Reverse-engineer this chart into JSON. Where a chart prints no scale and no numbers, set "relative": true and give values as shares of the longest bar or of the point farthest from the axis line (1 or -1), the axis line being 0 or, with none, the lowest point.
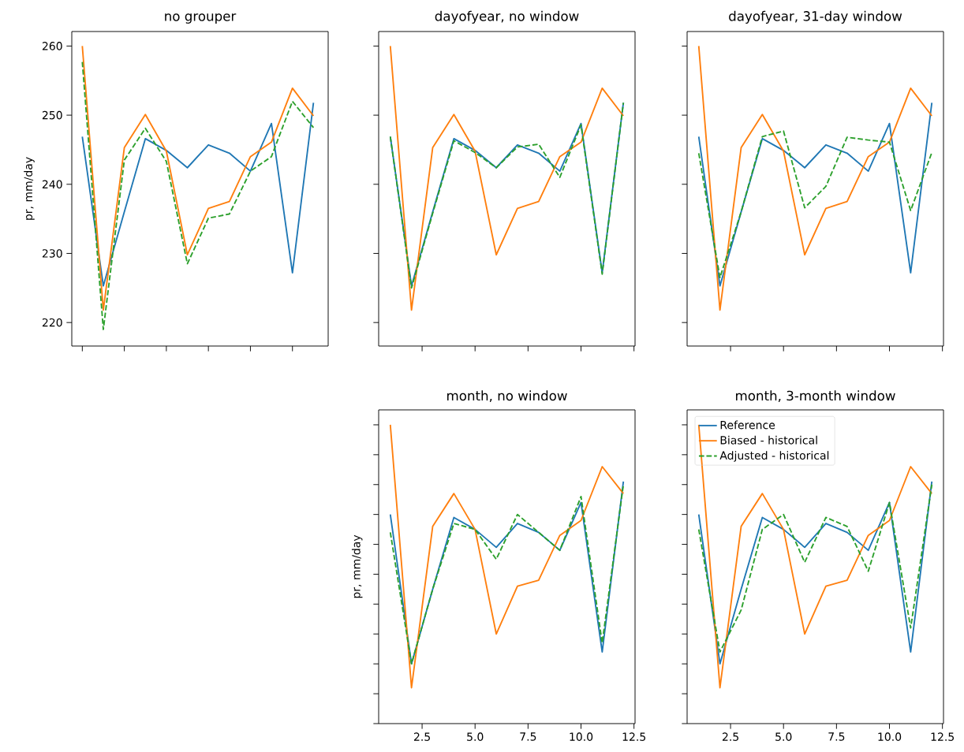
{
  "chart_data": [
    {
      "type": "line",
      "title": "no grouper",
      "ylabel": "pr, mm/day",
      "categories": [
        null,
        null,
        null,
        null,
        null,
        null,
        null,
        null,
        null,
        null,
        null,
        null
      ],
      "ylim": [
        216.6,
        262.1
      ],
      "yticks": [
        220,
        230,
        240,
        250,
        260
      ],
      "tick_labels": "y",
      "series": [
        {
          "color": "#1f77b4",
          "line_style": "solid",
          "values": [
            246.9,
            225.3,
            236.0,
            246.6,
            244.9,
            242.4,
            245.7,
            244.5,
            241.9,
            248.8,
            227.2,
            251.8
          ]
        },
        {
          "color": "#ff7f0e",
          "line_style": "solid",
          "values": [
            260.0,
            221.8,
            245.3,
            250.1,
            244.8,
            229.8,
            236.5,
            237.5,
            244.0,
            246.1,
            253.9,
            249.9
          ]
        },
        {
          "color": "#2ca02c",
          "line_style": "dashed",
          "values": [
            257.7,
            219.0,
            243.5,
            248.1,
            243.3,
            228.5,
            235.1,
            235.7,
            241.9,
            244.0,
            252.0,
            248.2
          ]
        }
      ]
    },
    {
      "type": "line",
      "title": "dayofyear, no window",
      "x": [
        1,
        2,
        3,
        4,
        5,
        6,
        7,
        8,
        9,
        10,
        11,
        12
      ],
      "xlim": [
        0.45,
        12.55
      ],
      "ylim": [
        216.6,
        262.1
      ],
      "xticks": [
        {
          "value": 2.5,
          "label": null
        },
        {
          "value": 5,
          "label": null
        },
        {
          "value": 7.5,
          "label": null
        },
        {
          "value": 10,
          "label": null
        },
        {
          "value": 12.5,
          "label": null
        }
      ],
      "yticks": [
        {
          "value": 220,
          "label": null
        },
        {
          "value": 230,
          "label": null
        },
        {
          "value": 240,
          "label": null
        },
        {
          "value": 250,
          "label": null
        },
        {
          "value": 260,
          "label": null
        }
      ],
      "tick_labels": false,
      "series": [
        {
          "color": "#1f77b4",
          "line_style": "solid",
          "values": [
            246.9,
            225.3,
            236.0,
            246.6,
            244.9,
            242.4,
            245.7,
            244.5,
            241.9,
            248.8,
            227.2,
            251.8
          ]
        },
        {
          "color": "#ff7f0e",
          "line_style": "solid",
          "values": [
            260.0,
            221.8,
            245.3,
            250.1,
            244.8,
            229.8,
            236.5,
            237.5,
            244.0,
            246.1,
            253.9,
            249.9
          ]
        },
        {
          "color": "#2ca02c",
          "line_style": "dashed",
          "values": [
            246.9,
            225.0,
            235.8,
            246.3,
            244.6,
            242.4,
            245.4,
            245.8,
            241.0,
            248.6,
            227.0,
            251.8
          ]
        }
      ]
    },
    {
      "type": "line",
      "title": "dayofyear, 31-day window",
      "x": [
        1,
        2,
        3,
        4,
        5,
        6,
        7,
        8,
        9,
        10,
        11,
        12
      ],
      "xlim": [
        0.45,
        12.55
      ],
      "ylim": [
        216.6,
        262.1
      ],
      "xticks": [
        {
          "value": 2.5,
          "label": null
        },
        {
          "value": 5,
          "label": null
        },
        {
          "value": 7.5,
          "label": null
        },
        {
          "value": 10,
          "label": null
        },
        {
          "value": 12.5,
          "label": null
        }
      ],
      "yticks": [
        {
          "value": 220,
          "label": null
        },
        {
          "value": 230,
          "label": null
        },
        {
          "value": 240,
          "label": null
        },
        {
          "value": 250,
          "label": null
        },
        {
          "value": 260,
          "label": null
        }
      ],
      "tick_labels": false,
      "series": [
        {
          "color": "#1f77b4",
          "line_style": "solid",
          "values": [
            246.9,
            225.3,
            236.0,
            246.6,
            244.9,
            242.4,
            245.7,
            244.5,
            241.9,
            248.8,
            227.2,
            251.8
          ]
        },
        {
          "color": "#ff7f0e",
          "line_style": "solid",
          "values": [
            260.0,
            221.8,
            245.3,
            250.1,
            244.8,
            229.8,
            236.5,
            237.5,
            244.0,
            246.1,
            253.9,
            249.9
          ]
        },
        {
          "color": "#2ca02c",
          "line_style": "dashed",
          "values": [
            244.5,
            226.5,
            236.0,
            246.9,
            247.7,
            236.6,
            239.7,
            246.8,
            246.4,
            246.1,
            236.2,
            244.6
          ]
        }
      ]
    },
    {
      "type": "line",
      "title": "month, no window",
      "ylabel": "pr, mm/day",
      "x": [
        1,
        2,
        3,
        4,
        5,
        6,
        7,
        8,
        9,
        10,
        11,
        12
      ],
      "xlim": [
        0.45,
        12.55
      ],
      "relative": true,
      "xticks": [
        {
          "value": 2.5,
          "label": "2.5"
        },
        {
          "value": 5,
          "label": "5.0"
        },
        {
          "value": 7.5,
          "label": "7.5"
        },
        {
          "value": 10,
          "label": "10.0"
        },
        {
          "value": 12.5,
          "label": "12.5"
        }
      ],
      "tick_labels": "x",
      "series": [
        {
          "color": "#1f77b4",
          "line_style": "solid",
          "values": [
            0.7,
            0.2,
            0.45,
            0.69,
            0.65,
            0.59,
            0.67,
            0.64,
            0.58,
            0.74,
            0.24,
            0.81
          ]
        },
        {
          "color": "#ff7f0e",
          "line_style": "solid",
          "values": [
            1.0,
            0.12,
            0.66,
            0.77,
            0.65,
            0.3,
            0.46,
            0.48,
            0.63,
            0.68,
            0.86,
            0.77
          ]
        },
        {
          "color": "#2ca02c",
          "line_style": "dashed",
          "values": [
            0.64,
            0.2,
            0.45,
            0.67,
            0.65,
            0.55,
            0.7,
            0.64,
            0.58,
            0.76,
            0.27,
            0.8
          ]
        }
      ]
    },
    {
      "type": "line",
      "title": "month, 3-month window",
      "x": [
        1,
        2,
        3,
        4,
        5,
        6,
        7,
        8,
        9,
        10,
        11,
        12
      ],
      "xlim": [
        0.45,
        12.55
      ],
      "relative": true,
      "xticks": [
        {
          "value": 2.5,
          "label": "2.5"
        },
        {
          "value": 5,
          "label": "5.0"
        },
        {
          "value": 7.5,
          "label": "7.5"
        },
        {
          "value": 10,
          "label": "10.0"
        },
        {
          "value": 12.5,
          "label": "12.5"
        }
      ],
      "tick_labels": "x",
      "legend": "top left",
      "series": [
        {
          "name": "Reference",
          "color": "#1f77b4",
          "line_style": "solid",
          "values": [
            0.7,
            0.2,
            0.45,
            0.69,
            0.65,
            0.59,
            0.67,
            0.64,
            0.58,
            0.74,
            0.24,
            0.81
          ]
        },
        {
          "name": "Biased - historical",
          "color": "#ff7f0e",
          "line_style": "solid",
          "values": [
            1.0,
            0.12,
            0.66,
            0.77,
            0.65,
            0.3,
            0.46,
            0.48,
            0.63,
            0.68,
            0.86,
            0.77
          ]
        },
        {
          "name": "Adjusted - historical",
          "color": "#2ca02c",
          "line_style": "dashed",
          "values": [
            0.65,
            0.24,
            0.38,
            0.65,
            0.7,
            0.54,
            0.69,
            0.66,
            0.51,
            0.74,
            0.32,
            0.8
          ]
        }
      ]
    }
  ]
}
